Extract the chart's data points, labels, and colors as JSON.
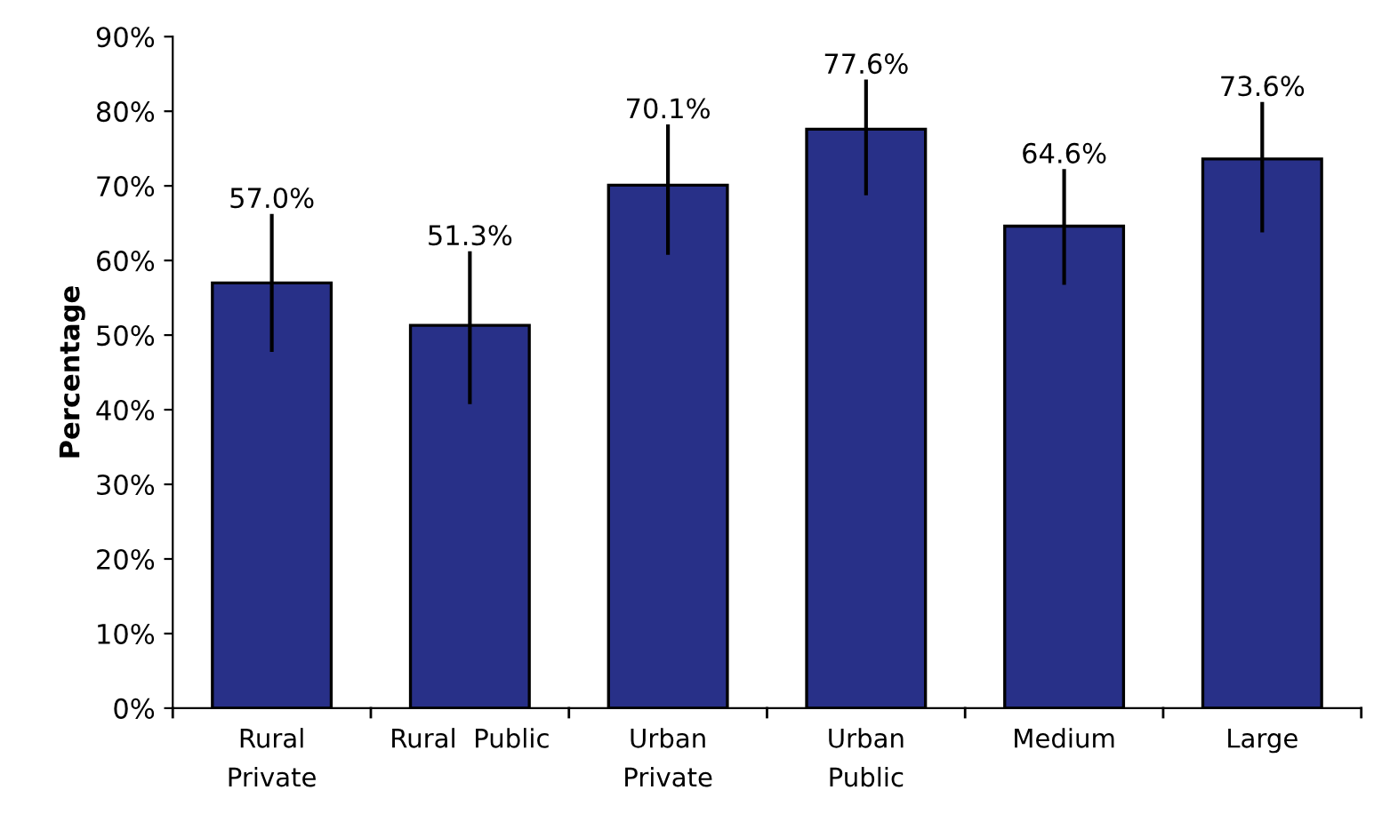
{
  "chart_data": {
    "type": "bar",
    "ylabel": "Percentage",
    "categories": [
      "Rural\nPrivate",
      "Rural  Public",
      "Urban\nPrivate",
      "Urban\nPublic",
      "Medium",
      "Large"
    ],
    "values": [
      57.0,
      51.3,
      70.1,
      77.6,
      64.6,
      73.6
    ],
    "value_labels": [
      "57.0%",
      "51.3%",
      "70.1%",
      "77.6%",
      "64.6%",
      "73.6%"
    ],
    "errors": [
      [
        48,
        66
      ],
      [
        41,
        61
      ],
      [
        61,
        78
      ],
      [
        69,
        84
      ],
      [
        57,
        72
      ],
      [
        64,
        81
      ]
    ],
    "color": "#283088",
    "ylim": [
      0,
      90
    ],
    "yticks": [
      {
        "value": 0,
        "label": "0%"
      },
      {
        "value": 10,
        "label": "10%"
      },
      {
        "value": 20,
        "label": "20%"
      },
      {
        "value": 30,
        "label": "30%"
      },
      {
        "value": 40,
        "label": "40%"
      },
      {
        "value": 50,
        "label": "50%"
      },
      {
        "value": 60,
        "label": "60%"
      },
      {
        "value": 70,
        "label": "70%"
      },
      {
        "value": 80,
        "label": "80%"
      },
      {
        "value": 90,
        "label": "90%"
      }
    ],
    "grid": false,
    "legend": false
  }
}
